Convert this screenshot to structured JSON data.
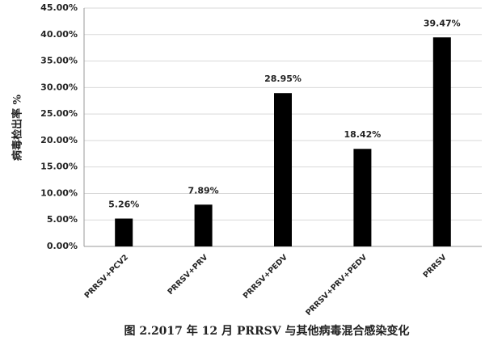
{
  "chart_data": {
    "type": "bar",
    "title": "图 2.2017 年 12 月 PRRSV 与其他病毒混合感染变化",
    "y_label": "病毒检出率 %",
    "categories": [
      "PRRSV+PCV2",
      "PRRSV+PRV",
      "PRRSV+PEDV",
      "PRRSV+PRV+PEDV",
      "PRRSV"
    ],
    "values": [
      5.26,
      7.89,
      28.95,
      18.42,
      39.47
    ],
    "value_labels": [
      "5.26%",
      "7.89%",
      "28.95%",
      "18.42%",
      "39.47%"
    ],
    "color": "#000000",
    "ylim": [
      0,
      45
    ],
    "yticks": [
      {
        "value": 0,
        "label": "0.00%"
      },
      {
        "value": 5,
        "label": "5.00%"
      },
      {
        "value": 10,
        "label": "10.00%"
      },
      {
        "value": 15,
        "label": "15.00%"
      },
      {
        "value": 20,
        "label": "20.00%"
      },
      {
        "value": 25,
        "label": "25.00%"
      },
      {
        "value": 30,
        "label": "30.00%"
      },
      {
        "value": 35,
        "label": "35.00%"
      },
      {
        "value": 40,
        "label": "40.00%"
      },
      {
        "value": 45,
        "label": "45.00%"
      }
    ],
    "grid": true
  }
}
